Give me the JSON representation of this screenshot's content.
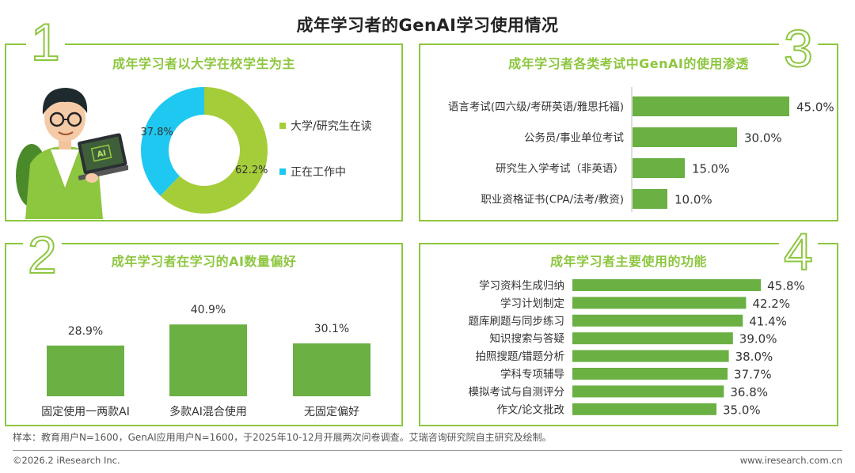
{
  "title": "成年学习者的GenAI学习使用情况",
  "panels": {
    "p1": {
      "number": "1",
      "title": "成年学习者以大学在校学生为主"
    },
    "p2": {
      "number": "2",
      "title": "成年学习者在学习的AI数量偏好"
    },
    "p3": {
      "number": "3",
      "title": "成年学习者各类考试中GenAI的使用渗透"
    },
    "p4": {
      "number": "4",
      "title": "成年学习者主要使用的功能"
    }
  },
  "illustration": {
    "laptop_text": "AI"
  },
  "colors": {
    "accent": "#8dc63f",
    "bar": "#6ab043",
    "cyan": "#1fc8f0"
  },
  "footer": {
    "note": "样本：教育用户N=1600，GenAI应用用户N=1600，于2025年10-12月开展两次问卷调查。艾瑞咨询研究院自主研究及绘制。",
    "copyright": "©2026.2 iResearch Inc.",
    "website": "www.iresearch.com.cn"
  },
  "chart_data": [
    {
      "type": "pie",
      "title": "成年学习者以大学在校学生为主",
      "slices": [
        {
          "label": "大学/研究生在读",
          "value": 62.2,
          "display": "62.2%",
          "color": "#a5cd39"
        },
        {
          "label": "正在工作中",
          "value": 37.8,
          "display": "37.8%",
          "color": "#1fc8f0"
        }
      ]
    },
    {
      "type": "bar",
      "title": "成年学习者在学习的AI数量偏好",
      "categories": [
        "固定使用一两款AI",
        "多款AI混合使用",
        "无固定偏好"
      ],
      "values": [
        28.9,
        40.9,
        30.1
      ],
      "labels": [
        "28.9%",
        "40.9%",
        "30.1%"
      ],
      "orientation": "vertical"
    },
    {
      "type": "bar",
      "title": "成年学习者各类考试中GenAI的使用渗透",
      "categories": [
        "语言考试(四六级/考研英语/雅思托福)",
        "公务员/事业单位考试",
        "研究生入学考试（非英语）",
        "职业资格证书(CPA/法考/教资)"
      ],
      "values": [
        45.0,
        30.0,
        15.0,
        10.0
      ],
      "labels": [
        "45.0%",
        "30.0%",
        "15.0%",
        "10.0%"
      ],
      "orientation": "horizontal"
    },
    {
      "type": "bar",
      "title": "成年学习者主要使用的功能",
      "categories": [
        "学习资料生成归纳",
        "学习计划制定",
        "题库刷题与同步练习",
        "知识搜索与答疑",
        "拍照搜题/错题分析",
        "学科专项辅导",
        "模拟考试与自测评分",
        "作文/论文批改"
      ],
      "values": [
        45.8,
        42.2,
        41.4,
        39.0,
        38.0,
        37.7,
        36.8,
        35.0
      ],
      "labels": [
        "45.8%",
        "42.2%",
        "41.4%",
        "39.0%",
        "38.0%",
        "37.7%",
        "36.8%",
        "35.0%"
      ],
      "orientation": "horizontal"
    }
  ]
}
